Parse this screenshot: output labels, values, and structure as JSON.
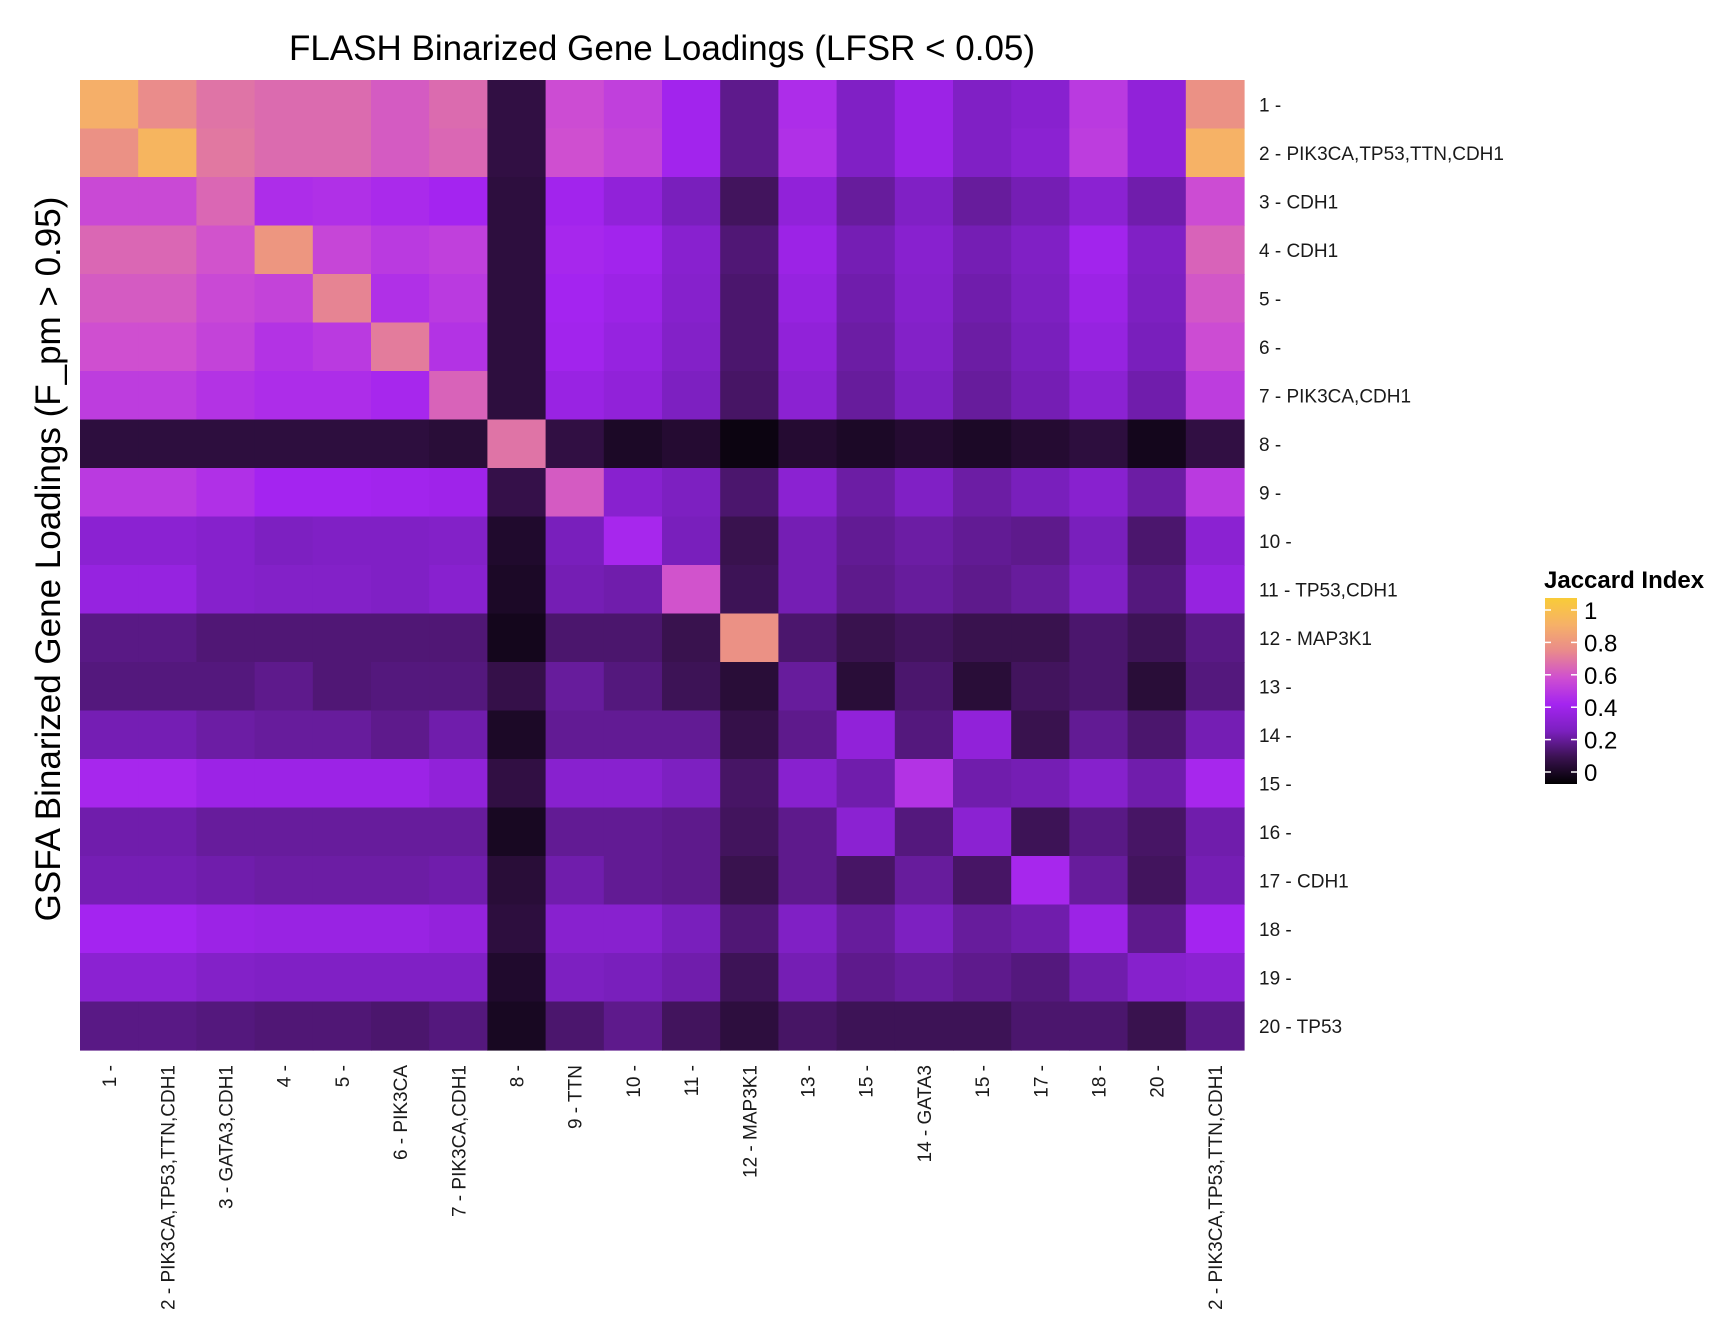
{
  "chart_data": {
    "type": "heatmap",
    "title": "FLASH Binarized Gene Loadings (LFSR < 0.05)",
    "xlabel": "",
    "ylabel": "GSFA Binarized Gene Loadings (F_pm > 0.95)",
    "x_categories": [
      "1 -",
      "2 - PIK3CA,TP53,TTN,CDH1",
      "3 - GATA3,CDH1",
      "4 -",
      "5 -",
      "6 - PIK3CA",
      "7 - PIK3CA,CDH1",
      "8 -",
      "9 - TTN",
      "10 -",
      "11 -",
      "12 - MAP3K1",
      "13 -",
      "15 -",
      "14 - GATA3",
      "15 -",
      "17 -",
      "18 -",
      "20 -",
      "2 - PIK3CA,TP53,TTN,CDH1"
    ],
    "y_categories": [
      "1 -",
      "2 - PIK3CA,TP53,TTN,CDH1",
      "3 - CDH1",
      "4 - CDH1",
      "5 -",
      "6 -",
      "7 - PIK3CA,CDH1",
      "8 -",
      "9 -",
      "10 -",
      "11 - TP53,CDH1",
      "12 - MAP3K1",
      "13 -",
      "14 -",
      "15 -",
      "16 -",
      "17 - CDH1",
      "18 -",
      "19 -",
      "20 - TP53"
    ],
    "values": [
      [
        0.85,
        0.72,
        0.66,
        0.64,
        0.64,
        0.6,
        0.64,
        0.12,
        0.56,
        0.52,
        0.42,
        0.22,
        0.46,
        0.3,
        0.4,
        0.3,
        0.33,
        0.5,
        0.36,
        0.74
      ],
      [
        0.74,
        0.88,
        0.67,
        0.64,
        0.64,
        0.6,
        0.63,
        0.12,
        0.57,
        0.53,
        0.42,
        0.22,
        0.47,
        0.3,
        0.4,
        0.3,
        0.34,
        0.51,
        0.36,
        0.86
      ],
      [
        0.55,
        0.55,
        0.63,
        0.46,
        0.47,
        0.45,
        0.43,
        0.11,
        0.42,
        0.36,
        0.28,
        0.16,
        0.36,
        0.24,
        0.3,
        0.24,
        0.27,
        0.34,
        0.26,
        0.56
      ],
      [
        0.63,
        0.63,
        0.58,
        0.76,
        0.54,
        0.5,
        0.52,
        0.11,
        0.44,
        0.42,
        0.33,
        0.19,
        0.4,
        0.27,
        0.33,
        0.27,
        0.3,
        0.42,
        0.3,
        0.62
      ],
      [
        0.6,
        0.6,
        0.55,
        0.53,
        0.7,
        0.47,
        0.5,
        0.11,
        0.43,
        0.4,
        0.32,
        0.18,
        0.38,
        0.26,
        0.32,
        0.26,
        0.29,
        0.4,
        0.29,
        0.59
      ],
      [
        0.57,
        0.57,
        0.53,
        0.48,
        0.5,
        0.68,
        0.48,
        0.11,
        0.42,
        0.38,
        0.31,
        0.18,
        0.36,
        0.25,
        0.31,
        0.25,
        0.28,
        0.38,
        0.28,
        0.56
      ],
      [
        0.51,
        0.51,
        0.48,
        0.46,
        0.46,
        0.44,
        0.62,
        0.11,
        0.39,
        0.36,
        0.29,
        0.17,
        0.34,
        0.24,
        0.29,
        0.24,
        0.27,
        0.34,
        0.26,
        0.51
      ],
      [
        0.11,
        0.11,
        0.11,
        0.11,
        0.11,
        0.11,
        0.1,
        0.66,
        0.12,
        0.07,
        0.09,
        0.03,
        0.09,
        0.07,
        0.09,
        0.07,
        0.09,
        0.11,
        0.05,
        0.12
      ],
      [
        0.5,
        0.5,
        0.47,
        0.43,
        0.43,
        0.42,
        0.41,
        0.13,
        0.6,
        0.33,
        0.29,
        0.18,
        0.34,
        0.25,
        0.3,
        0.25,
        0.28,
        0.33,
        0.25,
        0.5
      ],
      [
        0.34,
        0.34,
        0.32,
        0.29,
        0.3,
        0.3,
        0.31,
        0.08,
        0.28,
        0.44,
        0.28,
        0.14,
        0.27,
        0.23,
        0.25,
        0.23,
        0.22,
        0.28,
        0.18,
        0.34
      ],
      [
        0.38,
        0.38,
        0.32,
        0.31,
        0.31,
        0.3,
        0.33,
        0.07,
        0.27,
        0.26,
        0.58,
        0.15,
        0.27,
        0.22,
        0.24,
        0.22,
        0.24,
        0.3,
        0.2,
        0.38
      ],
      [
        0.21,
        0.21,
        0.19,
        0.19,
        0.19,
        0.19,
        0.19,
        0.05,
        0.18,
        0.18,
        0.14,
        0.74,
        0.18,
        0.14,
        0.16,
        0.14,
        0.14,
        0.18,
        0.15,
        0.21
      ],
      [
        0.2,
        0.2,
        0.2,
        0.22,
        0.19,
        0.2,
        0.2,
        0.13,
        0.24,
        0.2,
        0.15,
        0.1,
        0.24,
        0.1,
        0.18,
        0.1,
        0.16,
        0.18,
        0.1,
        0.2
      ],
      [
        0.27,
        0.27,
        0.25,
        0.24,
        0.24,
        0.22,
        0.26,
        0.07,
        0.23,
        0.23,
        0.23,
        0.13,
        0.22,
        0.36,
        0.2,
        0.36,
        0.14,
        0.23,
        0.18,
        0.27
      ],
      [
        0.44,
        0.44,
        0.4,
        0.4,
        0.4,
        0.4,
        0.36,
        0.12,
        0.33,
        0.33,
        0.29,
        0.17,
        0.33,
        0.26,
        0.48,
        0.26,
        0.27,
        0.32,
        0.26,
        0.44
      ],
      [
        0.26,
        0.26,
        0.24,
        0.24,
        0.24,
        0.24,
        0.24,
        0.06,
        0.23,
        0.23,
        0.22,
        0.16,
        0.22,
        0.34,
        0.2,
        0.34,
        0.15,
        0.21,
        0.17,
        0.26
      ],
      [
        0.27,
        0.27,
        0.26,
        0.25,
        0.25,
        0.25,
        0.26,
        0.1,
        0.26,
        0.23,
        0.22,
        0.14,
        0.22,
        0.17,
        0.24,
        0.17,
        0.44,
        0.24,
        0.16,
        0.27
      ],
      [
        0.43,
        0.43,
        0.4,
        0.39,
        0.39,
        0.39,
        0.37,
        0.11,
        0.33,
        0.33,
        0.28,
        0.19,
        0.3,
        0.24,
        0.29,
        0.24,
        0.26,
        0.4,
        0.22,
        0.43
      ],
      [
        0.34,
        0.34,
        0.31,
        0.3,
        0.3,
        0.3,
        0.3,
        0.08,
        0.29,
        0.28,
        0.26,
        0.15,
        0.27,
        0.22,
        0.24,
        0.22,
        0.2,
        0.26,
        0.32,
        0.34
      ],
      [
        0.21,
        0.21,
        0.2,
        0.19,
        0.19,
        0.18,
        0.2,
        0.06,
        0.18,
        0.22,
        0.16,
        0.11,
        0.17,
        0.15,
        0.15,
        0.15,
        0.18,
        0.18,
        0.14,
        0.21
      ]
    ],
    "legend": {
      "title": "Jaccard Index",
      "ticks": [
        "1",
        "0.8",
        "0.6",
        "0.4",
        "0.2",
        "0"
      ],
      "position": "right",
      "colors": [
        "#000000",
        "#3a1250",
        "#7c20c0",
        "#a424f0",
        "#cf4fd0",
        "#e98a8c",
        "#f6b167",
        "#f9cc38"
      ]
    }
  }
}
